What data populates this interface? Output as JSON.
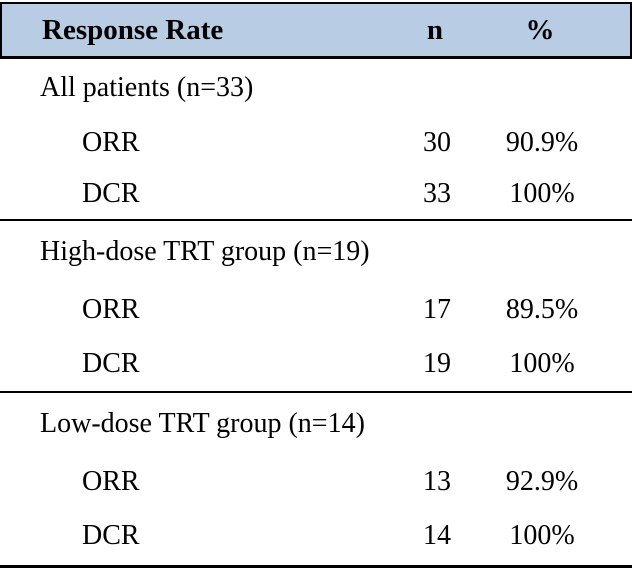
{
  "table": {
    "header": {
      "title": "Response Rate",
      "col_n": "n",
      "col_pct": "%"
    },
    "sections": [
      {
        "label": "All patients (n=33)",
        "rows": [
          {
            "label": "ORR",
            "n": "30",
            "pct": "90.9%"
          },
          {
            "label": "DCR",
            "n": "33",
            "pct": "100%"
          }
        ]
      },
      {
        "label": "High-dose TRT group (n=19)",
        "rows": [
          {
            "label": "ORR",
            "n": "17",
            "pct": "89.5%"
          },
          {
            "label": "DCR",
            "n": "19",
            "pct": "100%"
          }
        ]
      },
      {
        "label": "Low-dose TRT group (n=14)",
        "rows": [
          {
            "label": "ORR",
            "n": "13",
            "pct": "92.9%"
          },
          {
            "label": "DCR",
            "n": "14",
            "pct": "100%"
          }
        ]
      }
    ],
    "colors": {
      "header_bg": "#b8cce4",
      "rule": "#000000",
      "text": "#000000"
    }
  },
  "chart_data": {
    "type": "table",
    "title": "Response Rate",
    "columns": [
      "Response Rate",
      "n",
      "%"
    ],
    "rows": [
      [
        "All patients (n=33)",
        "",
        ""
      ],
      [
        "ORR",
        30,
        "90.9%"
      ],
      [
        "DCR",
        33,
        "100%"
      ],
      [
        "High-dose TRT group (n=19)",
        "",
        ""
      ],
      [
        "ORR",
        17,
        "89.5%"
      ],
      [
        "DCR",
        19,
        "100%"
      ],
      [
        "Low-dose TRT group (n=14)",
        "",
        ""
      ],
      [
        "ORR",
        13,
        "92.9%"
      ],
      [
        "DCR",
        14,
        "100%"
      ]
    ]
  }
}
